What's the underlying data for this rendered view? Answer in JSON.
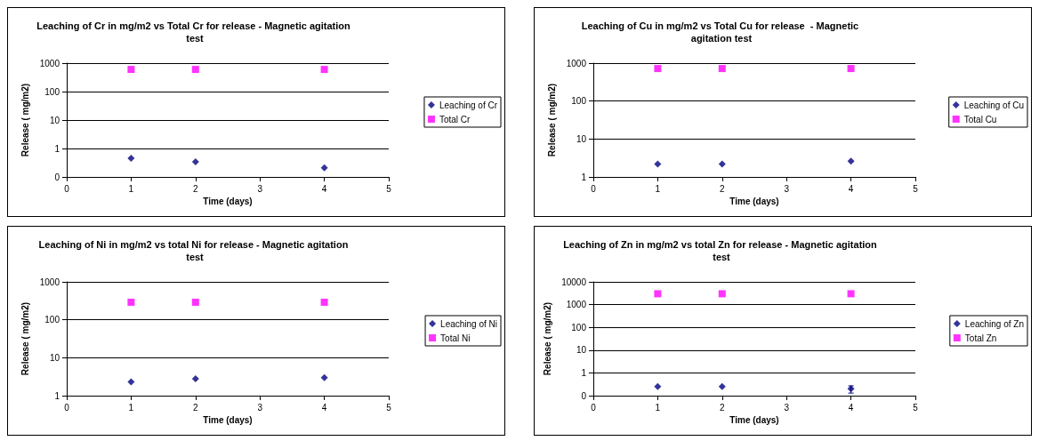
{
  "chart_data": [
    {
      "type": "scatter",
      "title": "Leaching of Cr in mg/m2 vs Total Cr for release - Magnetic agitation test",
      "xlabel": "Time (days)",
      "ylabel": "Release ( mg/m2)",
      "x": [
        1,
        2,
        4
      ],
      "xlim": [
        0,
        5
      ],
      "xticks": [
        0,
        1,
        2,
        3,
        4,
        5
      ],
      "ylim": [
        0.1,
        1000
      ],
      "yticks": [
        {
          "value": 0.1,
          "label": "0"
        },
        1,
        10,
        100,
        1000
      ],
      "log": "y",
      "grid": "y",
      "legend": "right",
      "series": [
        {
          "name": "Leaching of Cr",
          "color": "#000080",
          "marker": "diamond",
          "values": [
            0.45,
            0.34,
            0.21
          ]
        },
        {
          "name": "Total Cr",
          "color": "#ff00ff",
          "marker": "square",
          "values": [
            600,
            600,
            600
          ]
        }
      ]
    },
    {
      "type": "scatter",
      "title": "Leaching of Cu in mg/m2 vs Total Cu for release  - Magnetic agitation test",
      "xlabel": "Time (days)",
      "ylabel": "Release ( mg/m2)",
      "x": [
        1,
        2,
        4
      ],
      "xlim": [
        0,
        5
      ],
      "xticks": [
        0,
        1,
        2,
        3,
        4,
        5
      ],
      "ylim": [
        1,
        1000
      ],
      "yticks": [
        1,
        10,
        100,
        1000
      ],
      "log": "y",
      "grid": "y",
      "legend": "right",
      "series": [
        {
          "name": "Leaching of Cu",
          "color": "#000080",
          "marker": "diamond",
          "values": [
            2.2,
            2.2,
            2.6
          ]
        },
        {
          "name": "Total Cu",
          "color": "#ff00ff",
          "marker": "square",
          "values": [
            720,
            720,
            720
          ]
        }
      ]
    },
    {
      "type": "scatter",
      "title": "Leaching of Ni in mg/m2 vs total Ni for release - Magnetic agitation test",
      "xlabel": "Time (days)",
      "ylabel": "Release ( mg/m2)",
      "x": [
        1,
        2,
        4
      ],
      "xlim": [
        0,
        5
      ],
      "xticks": [
        0,
        1,
        2,
        3,
        4,
        5
      ],
      "ylim": [
        1,
        1000
      ],
      "yticks": [
        1,
        10,
        100,
        1000
      ],
      "log": "y",
      "grid": "y",
      "legend": "right",
      "series": [
        {
          "name": "Leaching of Ni",
          "color": "#000080",
          "marker": "diamond",
          "values": [
            2.3,
            2.8,
            3.0
          ]
        },
        {
          "name": "Total Ni",
          "color": "#ff00ff",
          "marker": "square",
          "values": [
            290,
            290,
            290
          ]
        }
      ]
    },
    {
      "type": "scatter",
      "title": "Leaching of Zn in mg/m2 vs total Zn for release - Magnetic agitation test",
      "xlabel": "Time (days)",
      "ylabel": "Release ( mg/m2)",
      "x": [
        1,
        2,
        4
      ],
      "xlim": [
        0,
        5
      ],
      "xticks": [
        0,
        1,
        2,
        3,
        4,
        5
      ],
      "ylim": [
        0.1,
        10000
      ],
      "yticks": [
        {
          "value": 0.1,
          "label": "0"
        },
        1,
        10,
        100,
        1000,
        10000
      ],
      "log": "y",
      "grid": "y",
      "legend": "right",
      "series": [
        {
          "name": "Leaching of Zn",
          "color": "#000080",
          "marker": "diamond",
          "values": [
            0.25,
            0.25,
            0.2
          ],
          "errors": [
            null,
            null,
            [
              0.13,
              0.27
            ]
          ]
        },
        {
          "name": "Total Zn",
          "color": "#ff00ff",
          "marker": "square",
          "values": [
            3000,
            3000,
            3000
          ]
        }
      ]
    }
  ]
}
